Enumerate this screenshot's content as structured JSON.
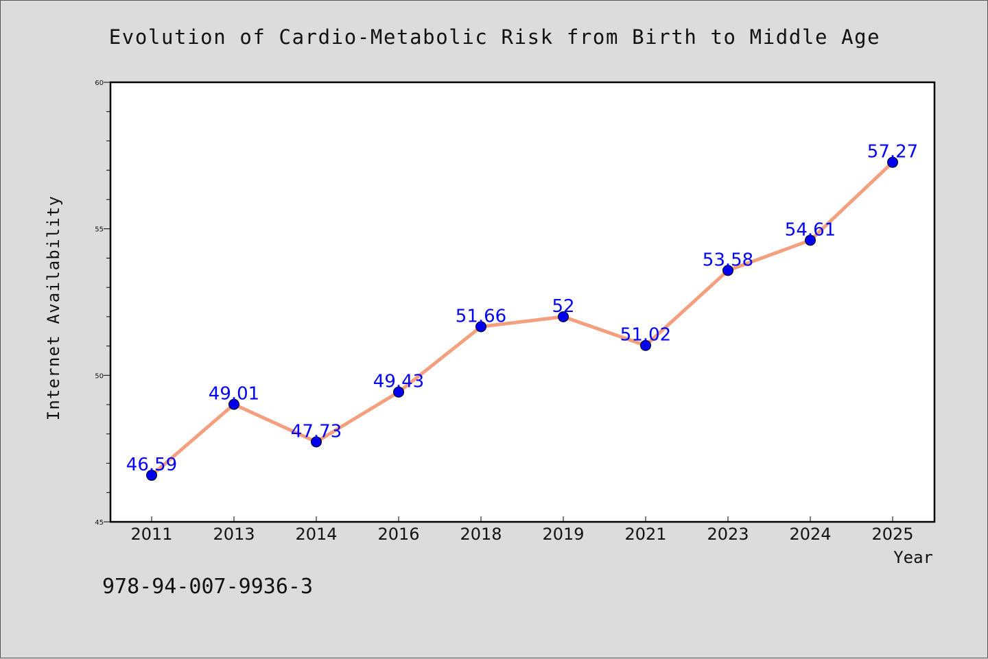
{
  "chart_data": {
    "type": "line",
    "title": "Evolution of Cardio-Metabolic Risk from Birth to Middle Age",
    "xlabel": "Year",
    "ylabel": "Internet Availability",
    "categories": [
      "2011",
      "2013",
      "2014",
      "2016",
      "2018",
      "2019",
      "2021",
      "2023",
      "2024",
      "2025"
    ],
    "values": [
      46.59,
      49.01,
      47.73,
      49.43,
      51.66,
      52,
      51.02,
      53.58,
      54.61,
      57.27
    ],
    "value_labels": [
      "46.59",
      "49.01",
      "47.73",
      "49.43",
      "51.66",
      "52",
      "51.02",
      "53.58",
      "54.61",
      "57.27"
    ],
    "ylim": [
      45,
      60
    ],
    "y_major_ticks": [
      45,
      50,
      55,
      60
    ],
    "y_minor_step": 1,
    "grid": false,
    "colors": {
      "line": "#f4a07e",
      "marker": "#0000ee",
      "label": "#0000ff",
      "plot_bg": "#ffffff",
      "page_bg": "#dcdcdc"
    }
  },
  "footer": {
    "isbn": "978-94-007-9936-3"
  }
}
